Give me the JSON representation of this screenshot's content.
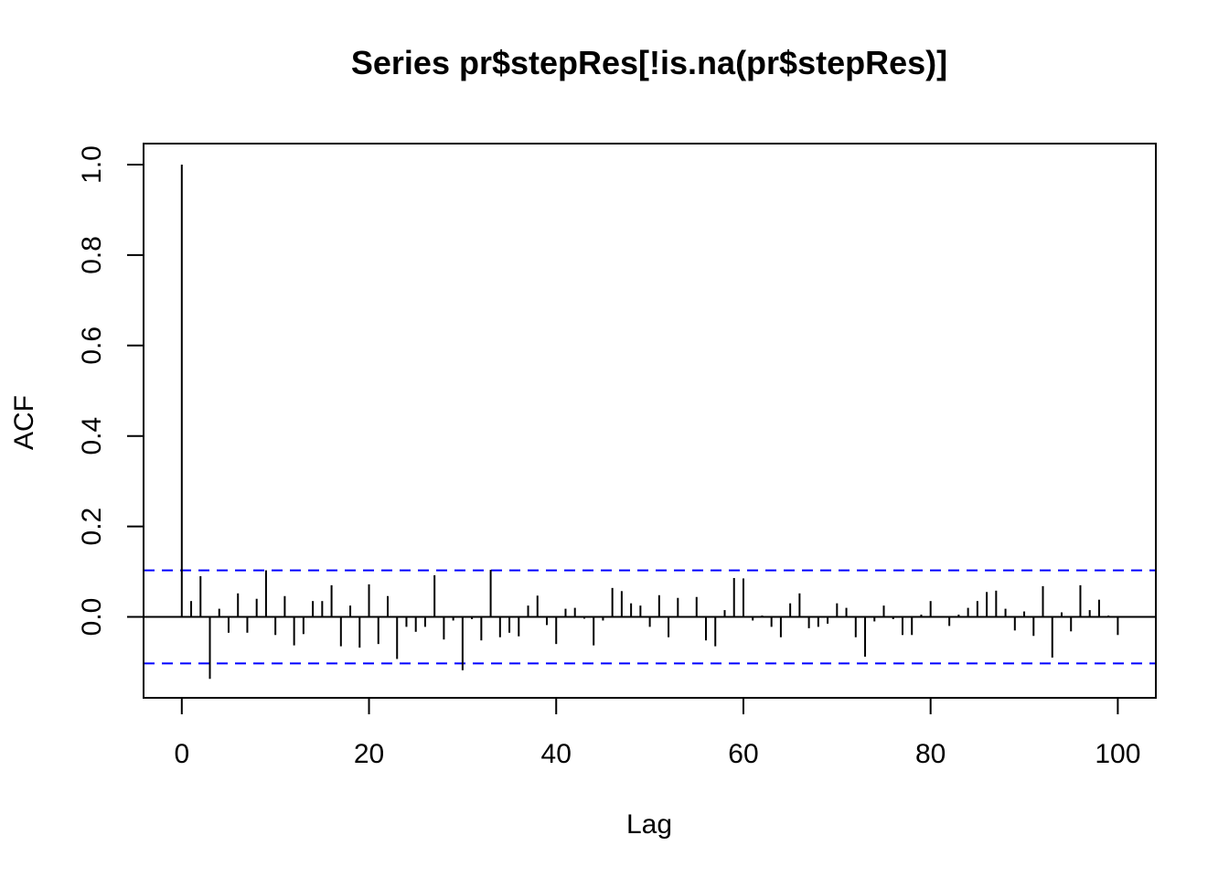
{
  "chart_data": {
    "type": "bar",
    "title": "Series  pr$stepRes[!is.na(pr$stepRes)]",
    "xlabel": "Lag",
    "ylabel": "ACF",
    "xlim": [
      0,
      100
    ],
    "ylim": [
      -0.18,
      1.05
    ],
    "x_ticks": [
      0,
      20,
      40,
      60,
      80,
      100
    ],
    "x_tick_labels": [
      "0",
      "20",
      "40",
      "60",
      "80",
      "100"
    ],
    "y_ticks": [
      0.0,
      0.2,
      0.4,
      0.6,
      0.8,
      1.0
    ],
    "y_tick_labels": [
      "0.0",
      "0.2",
      "0.4",
      "0.6",
      "0.8",
      "1.0"
    ],
    "confidence_bound": 0.103,
    "grid": false,
    "colors": {
      "spike": "#000000",
      "bound": "#0000ff",
      "zero_line": "#000000"
    },
    "lags": [
      0,
      1,
      2,
      3,
      4,
      5,
      6,
      7,
      8,
      9,
      10,
      11,
      12,
      13,
      14,
      15,
      16,
      17,
      18,
      19,
      20,
      21,
      22,
      23,
      24,
      25,
      26,
      27,
      28,
      29,
      30,
      31,
      32,
      33,
      34,
      35,
      36,
      37,
      38,
      39,
      40,
      41,
      42,
      43,
      44,
      45,
      46,
      47,
      48,
      49,
      50,
      51,
      52,
      53,
      54,
      55,
      56,
      57,
      58,
      59,
      60,
      61,
      62,
      63,
      64,
      65,
      66,
      67,
      68,
      69,
      70,
      71,
      72,
      73,
      74,
      75,
      76,
      77,
      78,
      79,
      80,
      81,
      82,
      83,
      84,
      85,
      86,
      87,
      88,
      89,
      90,
      91,
      92,
      93,
      94,
      95,
      96,
      97,
      98,
      99,
      100
    ],
    "acf": [
      1.0,
      0.035,
      0.09,
      -0.137,
      0.018,
      -0.035,
      0.052,
      -0.035,
      0.04,
      0.103,
      -0.04,
      0.046,
      -0.063,
      -0.038,
      0.035,
      0.035,
      0.07,
      -0.065,
      0.025,
      -0.068,
      0.072,
      -0.06,
      0.046,
      -0.093,
      -0.022,
      -0.033,
      -0.022,
      0.092,
      -0.05,
      -0.008,
      -0.118,
      -0.005,
      -0.052,
      0.104,
      -0.045,
      -0.035,
      -0.043,
      0.025,
      0.047,
      -0.018,
      -0.06,
      0.018,
      0.02,
      -0.004,
      -0.063,
      -0.008,
      0.064,
      0.057,
      0.03,
      0.025,
      -0.022,
      0.048,
      -0.045,
      0.042,
      0.002,
      0.044,
      -0.052,
      -0.065,
      0.015,
      0.086,
      0.085,
      -0.008,
      0.003,
      -0.022,
      -0.045,
      0.03,
      0.052,
      -0.025,
      -0.022,
      -0.015,
      0.03,
      0.02,
      -0.045,
      -0.088,
      -0.01,
      0.025,
      -0.005,
      -0.04,
      -0.04,
      0.005,
      0.035,
      -0.002,
      -0.02,
      0.005,
      0.02,
      0.035,
      0.055,
      0.058,
      0.018,
      -0.03,
      0.012,
      -0.042,
      0.068,
      -0.09,
      0.01,
      -0.032,
      0.07,
      0.015,
      0.038,
      0.003,
      -0.04
    ]
  }
}
